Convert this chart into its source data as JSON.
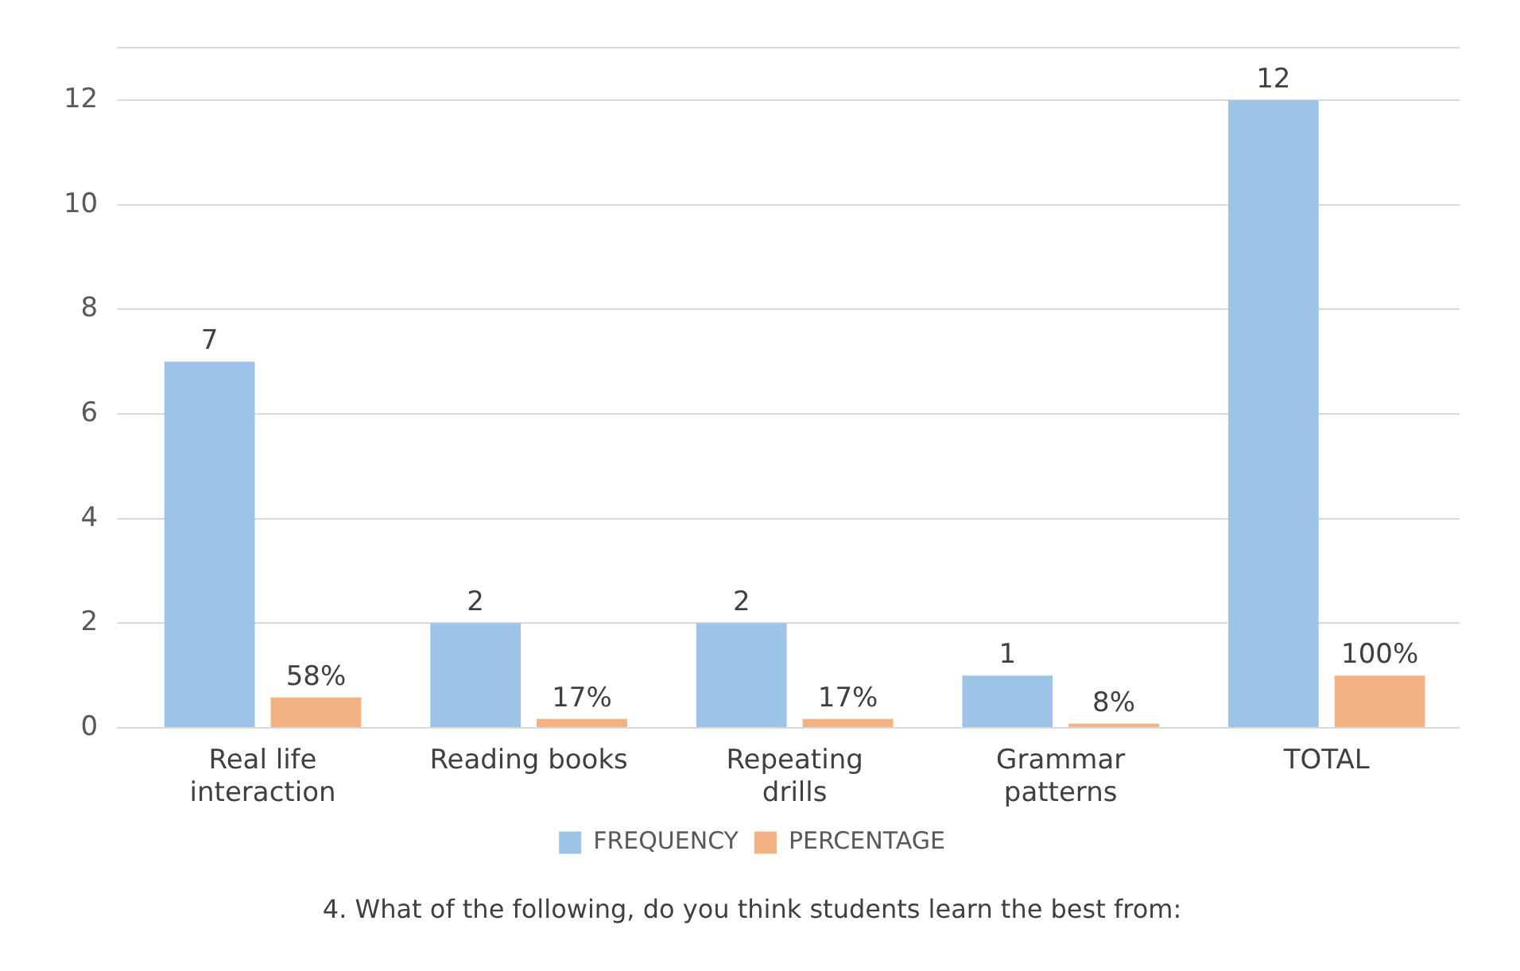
{
  "chart_data": {
    "type": "bar",
    "title": "4. What of the following, do you think students learn the best from:",
    "categories": [
      "Real life interaction",
      "Reading books",
      "Repeating drills",
      "Grammar patterns",
      "TOTAL"
    ],
    "series": [
      {
        "name": "FREQUENCY",
        "color": "#9dc3e6",
        "values": [
          7,
          2,
          2,
          1,
          12
        ],
        "value_labels": [
          "7",
          "2",
          "2",
          "1",
          "12"
        ]
      },
      {
        "name": "PERCENTAGE",
        "color": "#f4b183",
        "values": [
          0.58,
          0.17,
          0.17,
          0.08,
          1.0
        ],
        "value_labels": [
          "58%",
          "17%",
          "17%",
          "8%",
          "100%"
        ]
      }
    ],
    "ylim": [
      0,
      13
    ],
    "yticks": [
      0,
      2,
      4,
      6,
      8,
      10,
      12,
      {
        "value": 13,
        "label": null
      }
    ],
    "grid": "y",
    "legend": "bottom"
  }
}
